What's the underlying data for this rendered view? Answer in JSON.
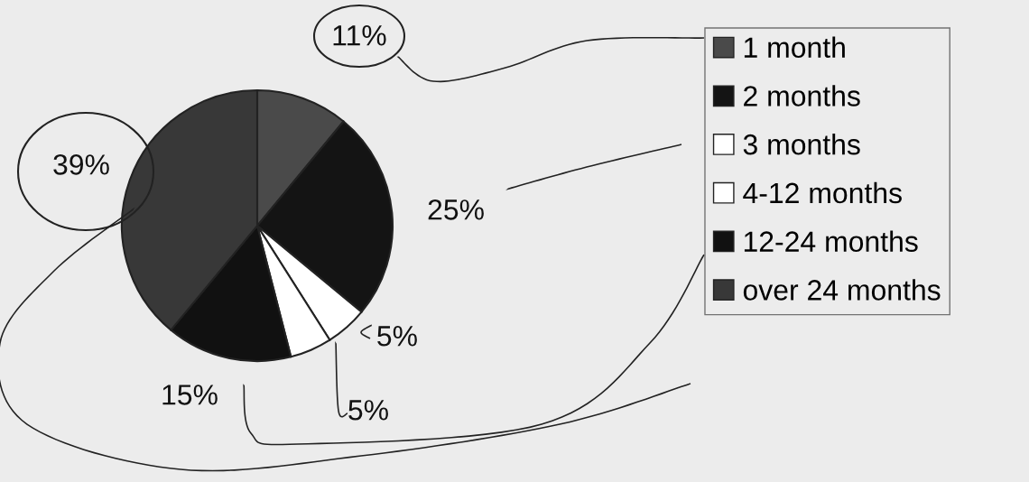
{
  "chart_data": {
    "type": "pie",
    "categories": [
      "1 month",
      "2 months",
      "3 months",
      "4-12 months",
      "12-24 months",
      "over 24 months"
    ],
    "values": [
      11,
      25,
      5,
      5,
      15,
      39
    ],
    "colors": [
      "#4a4a4a",
      "#141414",
      "#ffffff",
      "#ffffff",
      "#111111",
      "#383838"
    ],
    "value_labels": [
      "11%",
      "25%",
      "5%",
      "5%",
      "15%",
      "39%"
    ],
    "legend": "right"
  }
}
